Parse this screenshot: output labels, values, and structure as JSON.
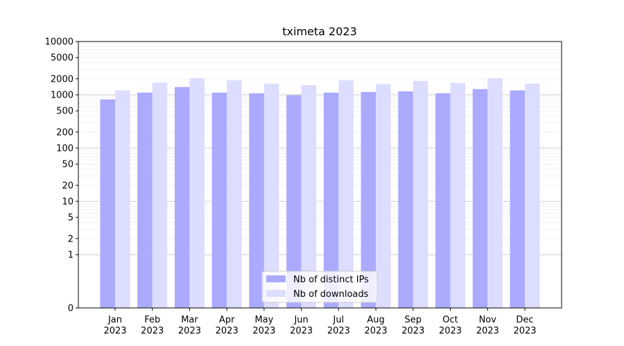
{
  "chart_data": {
    "type": "bar",
    "title": "tximeta 2023",
    "xlabel": "",
    "ylabel": "",
    "y_scale": "symlog",
    "ylim": [
      0,
      10000
    ],
    "y_ticks": [
      0,
      1,
      2,
      5,
      10,
      20,
      50,
      100,
      200,
      500,
      1000,
      2000,
      5000,
      10000
    ],
    "grid": "horizontal",
    "legend_position": "bottom-center",
    "categories": [
      [
        "Jan",
        "2023"
      ],
      [
        "Feb",
        "2023"
      ],
      [
        "Mar",
        "2023"
      ],
      [
        "Apr",
        "2023"
      ],
      [
        "May",
        "2023"
      ],
      [
        "Jun",
        "2023"
      ],
      [
        "Jul",
        "2023"
      ],
      [
        "Aug",
        "2023"
      ],
      [
        "Sep",
        "2023"
      ],
      [
        "Oct",
        "2023"
      ],
      [
        "Nov",
        "2023"
      ],
      [
        "Dec",
        "2023"
      ]
    ],
    "series": [
      {
        "name": "Nb of distinct IPs",
        "color": "#aaaaff",
        "values": [
          820,
          1100,
          1400,
          1100,
          1070,
          980,
          1100,
          1130,
          1160,
          1070,
          1280,
          1210
        ]
      },
      {
        "name": "Nb of downloads",
        "color": "#ddddff",
        "values": [
          1210,
          1700,
          2050,
          1870,
          1620,
          1520,
          1870,
          1600,
          1820,
          1670,
          2050,
          1630
        ]
      }
    ]
  }
}
